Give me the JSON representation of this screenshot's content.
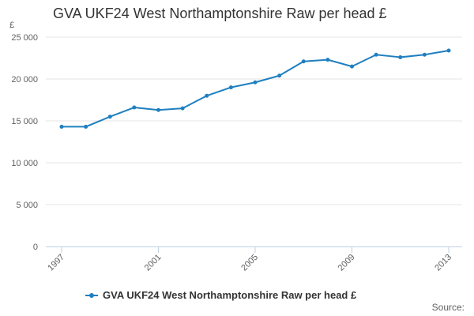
{
  "chart_data": {
    "type": "line",
    "title": "GVA UKF24 West Northamptonshire Raw per head £",
    "ylabel": "£",
    "xlabel": "",
    "x": [
      1997,
      1998,
      1999,
      2000,
      2001,
      2002,
      2003,
      2004,
      2005,
      2006,
      2007,
      2008,
      2009,
      2010,
      2011,
      2012,
      2013
    ],
    "x_tick_labels": [
      "1997",
      "2001",
      "2005",
      "2009",
      "2013"
    ],
    "y_ticks": [
      0,
      5000,
      10000,
      15000,
      20000,
      25000
    ],
    "y_tick_labels": [
      "0",
      "5 000",
      "10 000",
      "15 000",
      "20 000",
      "25 000"
    ],
    "ylim": [
      0,
      25000
    ],
    "grid": true,
    "legend_position": "bottom",
    "series": [
      {
        "name": "GVA UKF24 West Northamptonshire Raw per head £",
        "color": "#1f7fc0",
        "values": [
          14300,
          14300,
          15500,
          16600,
          16300,
          16500,
          18000,
          19000,
          19600,
          20400,
          22100,
          22300,
          21500,
          22900,
          22600,
          22900,
          23400
        ]
      }
    ]
  },
  "footer": {
    "source_label": "Source:"
  }
}
